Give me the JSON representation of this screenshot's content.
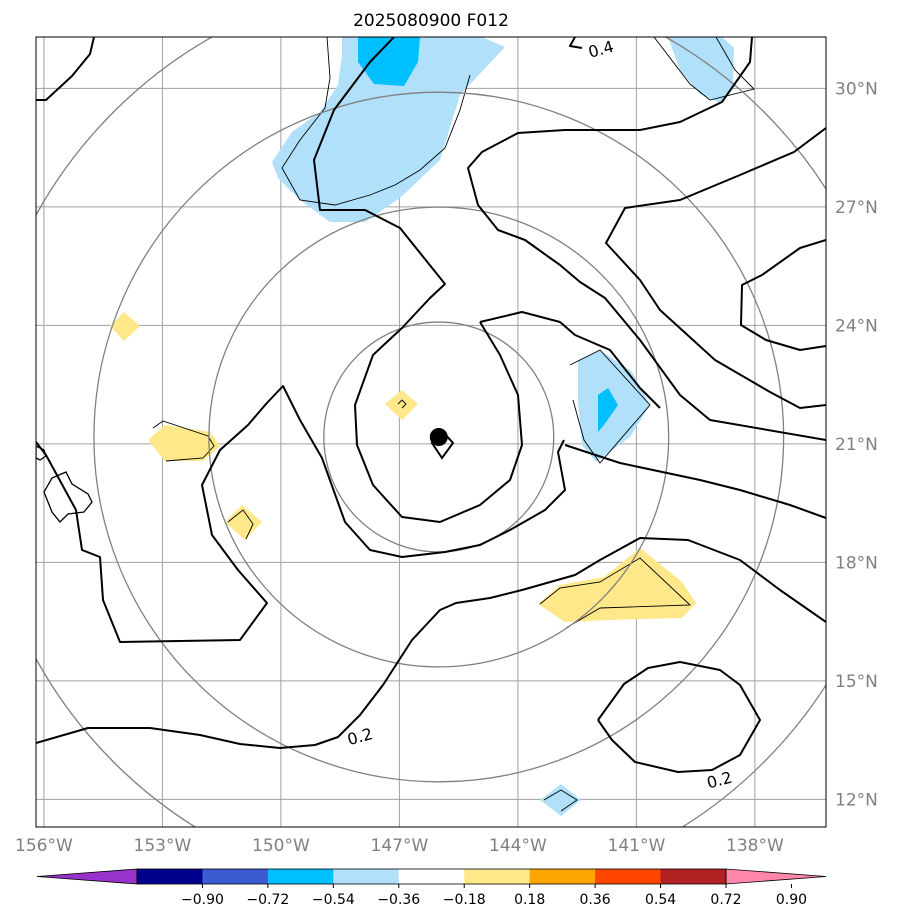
{
  "chart_data": {
    "type": "heatmap",
    "title": "2025080900 F012",
    "xlabel": "",
    "ylabel": "",
    "x_ticks": [
      "156°W",
      "153°W",
      "150°W",
      "147°W",
      "144°W",
      "141°W",
      "138°W"
    ],
    "y_ticks": [
      "30°N",
      "27°N",
      "24°N",
      "21°N",
      "18°N",
      "15°N",
      "12°N"
    ],
    "xlim": [
      -156.2,
      -136.2
    ],
    "ylim": [
      11.3,
      31.3
    ],
    "grid": true,
    "storm_center": {
      "lon": -145.75,
      "lat": 21.3
    },
    "contour_labels": [
      {
        "text": "0.4",
        "lon": -141.9,
        "lat": 31.0
      },
      {
        "text": "0.2",
        "lon": -148.0,
        "lat": 13.6
      },
      {
        "text": "0.2",
        "lon": -138.9,
        "lat": 12.5
      }
    ],
    "range_rings_deg": [
      3,
      6,
      9,
      12
    ],
    "colorbar": {
      "ticks": [
        "−0.90",
        "−0.72",
        "−0.54",
        "−0.36",
        "−0.18",
        "0.18",
        "0.36",
        "0.54",
        "0.72",
        "0.90"
      ],
      "colors": [
        "#9932cc",
        "#00008b",
        "#3c5ad2",
        "#00bfff",
        "#b0e0fa",
        "#ffffff",
        "#ffe88a",
        "#ffa500",
        "#ff4500",
        "#b22222",
        "#ff88aa"
      ],
      "extend": "both"
    }
  }
}
